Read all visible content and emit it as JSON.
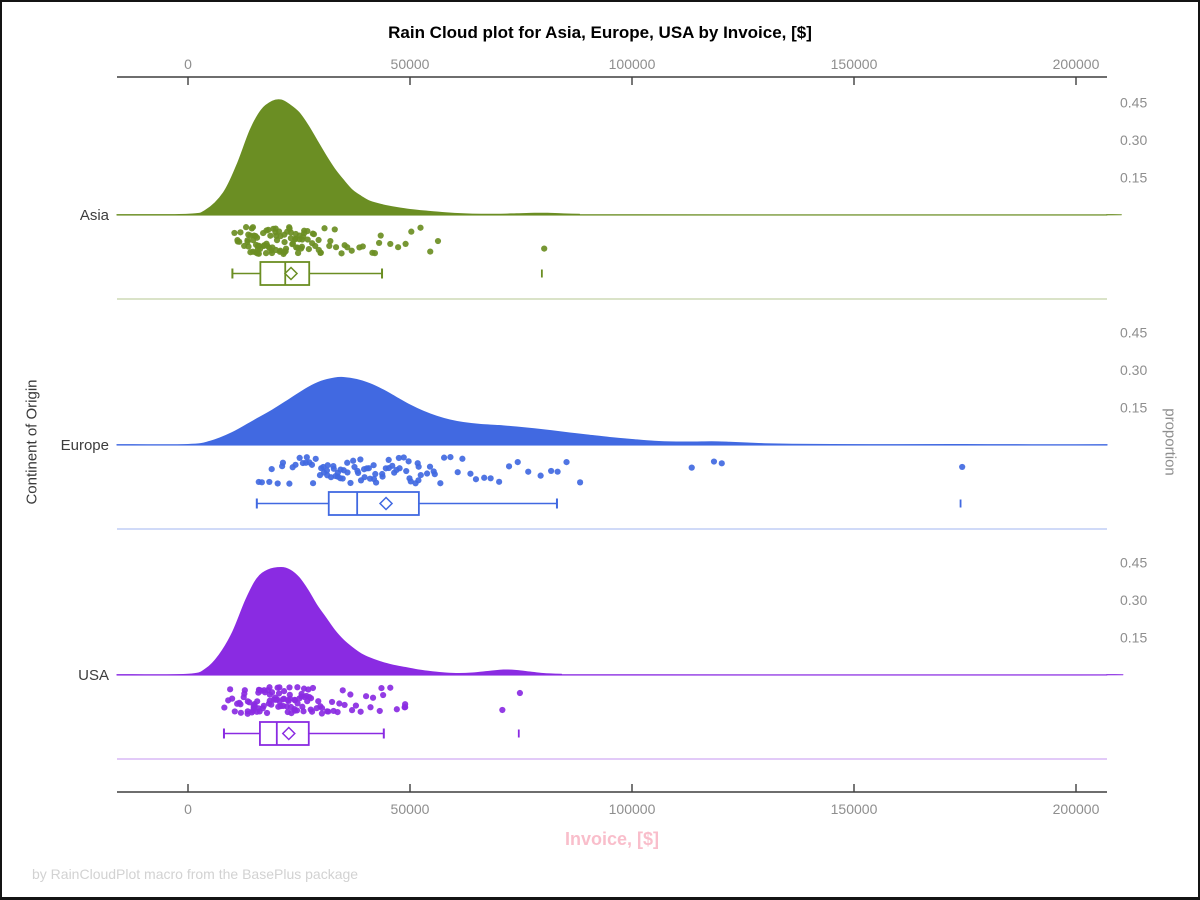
{
  "title": "Rain Cloud plot for Asia, Europe, USA by Invoice, [$]",
  "footer": "by RainCloudPlot macro from the BasePlus package",
  "x_axis": {
    "label": "Invoice, [$]",
    "ticks": [
      0,
      50000,
      100000,
      150000,
      200000
    ],
    "range": [
      -16000,
      207000
    ]
  },
  "y_axis_left": {
    "label": "Continent of Origin"
  },
  "y_axis_right": {
    "label": "proportion",
    "ticks": [
      0.15,
      0.3,
      0.45
    ]
  },
  "colors": {
    "asia": "#6B8E23",
    "europe": "#4169E1",
    "usa": "#8A2BE2",
    "axis_line": "#3f3f3f",
    "tick_label": "#8e8e8e",
    "category_label": "#3d3d3d",
    "xlabel_pink": "#F9BECB",
    "footer_gray": "#d2d2d2",
    "title_black": "#000000",
    "box_fill": "#ffffff"
  },
  "chart_data": {
    "type": "raincloud (half-violin density + jittered strip + box plot)",
    "x_unit": "Invoice, [$]",
    "proportion_ticks": [
      0.15,
      0.3,
      0.45
    ],
    "legend": "none",
    "grid": "off",
    "groups": [
      {
        "label": "Asia",
        "color": "#6B8E23",
        "density_peak": {
          "value": 20000,
          "proportion": 0.46
        },
        "box": {
          "whisker_low": 10000,
          "q1": 16300,
          "median": 21900,
          "mean": 23200,
          "q3": 27300,
          "whisker_high": 43700,
          "outliers": [
            79700
          ]
        },
        "density": [
          [
            0,
            0.003
          ],
          [
            4000,
            0.02
          ],
          [
            8000,
            0.09
          ],
          [
            11000,
            0.2
          ],
          [
            14000,
            0.34
          ],
          [
            16500,
            0.42
          ],
          [
            19000,
            0.455
          ],
          [
            21000,
            0.46
          ],
          [
            23000,
            0.44
          ],
          [
            25000,
            0.41
          ],
          [
            27000,
            0.36
          ],
          [
            29000,
            0.3
          ],
          [
            31000,
            0.24
          ],
          [
            33000,
            0.185
          ],
          [
            35000,
            0.14
          ],
          [
            37000,
            0.1
          ],
          [
            39000,
            0.075
          ],
          [
            41000,
            0.055
          ],
          [
            44000,
            0.04
          ],
          [
            47000,
            0.03
          ],
          [
            50000,
            0.022
          ],
          [
            54000,
            0.015
          ],
          [
            58000,
            0.009
          ],
          [
            62000,
            0.005
          ],
          [
            66000,
            0.003
          ],
          [
            70000,
            0.003
          ],
          [
            74000,
            0.005
          ],
          [
            78000,
            0.007
          ],
          [
            81000,
            0.007
          ],
          [
            84000,
            0.005
          ],
          [
            88000,
            0.003
          ],
          [
            95000,
            0.001
          ],
          [
            200000,
            0.0005
          ]
        ],
        "points": [
          10400,
          10900,
          11300,
          11700,
          12100,
          12400,
          12700,
          13000,
          13200,
          13500,
          13700,
          13900,
          14100,
          14300,
          14500,
          14700,
          14900,
          15000,
          15200,
          15400,
          15500,
          15700,
          15800,
          16000,
          16100,
          16200,
          16300,
          16500,
          16700,
          16900,
          17100,
          17300,
          17500,
          17700,
          17900,
          18100,
          18300,
          18500,
          18700,
          18900,
          19100,
          19300,
          19500,
          19700,
          19900,
          20100,
          20300,
          20500,
          20700,
          20900,
          21100,
          21300,
          21500,
          21700,
          21900,
          22100,
          22300,
          22500,
          22700,
          22900,
          23100,
          23300,
          23500,
          23800,
          24000,
          24200,
          24400,
          24600,
          24800,
          25000,
          25200,
          25400,
          25600,
          25800,
          26000,
          26200,
          26400,
          26600,
          26800,
          27000,
          27300,
          27600,
          27900,
          28200,
          28600,
          29000,
          29400,
          29800,
          30300,
          30800,
          31400,
          32000,
          32700,
          33500,
          34300,
          35200,
          36200,
          37300,
          38500,
          39800,
          41200,
          42500,
          43200,
          43800,
          45500,
          47000,
          48900,
          50500,
          52500,
          54300,
          56100,
          80200
        ]
      },
      {
        "label": "Europe",
        "color": "#4169E1",
        "density_peak": {
          "value": 35000,
          "proportion": 0.27
        },
        "box": {
          "whisker_low": 15500,
          "q1": 31700,
          "median": 38100,
          "mean": 44600,
          "q3": 52000,
          "whisker_high": 83100,
          "outliers": [
            174000
          ]
        },
        "density": [
          [
            0,
            0.002
          ],
          [
            5000,
            0.015
          ],
          [
            10000,
            0.05
          ],
          [
            15000,
            0.1
          ],
          [
            19000,
            0.14
          ],
          [
            23000,
            0.185
          ],
          [
            27000,
            0.23
          ],
          [
            30000,
            0.255
          ],
          [
            33000,
            0.268
          ],
          [
            35000,
            0.27
          ],
          [
            38000,
            0.262
          ],
          [
            41000,
            0.245
          ],
          [
            44000,
            0.22
          ],
          [
            47000,
            0.19
          ],
          [
            50000,
            0.16
          ],
          [
            53000,
            0.135
          ],
          [
            56000,
            0.115
          ],
          [
            59000,
            0.1
          ],
          [
            62000,
            0.09
          ],
          [
            66000,
            0.082
          ],
          [
            70000,
            0.078
          ],
          [
            74000,
            0.072
          ],
          [
            78000,
            0.065
          ],
          [
            82000,
            0.057
          ],
          [
            86000,
            0.048
          ],
          [
            90000,
            0.04
          ],
          [
            95000,
            0.03
          ],
          [
            100000,
            0.022
          ],
          [
            105000,
            0.015
          ],
          [
            110000,
            0.012
          ],
          [
            114000,
            0.012
          ],
          [
            118000,
            0.013
          ],
          [
            122000,
            0.011
          ],
          [
            126000,
            0.008
          ],
          [
            130000,
            0.005
          ],
          [
            136000,
            0.003
          ],
          [
            145000,
            0.002
          ],
          [
            160000,
            0.0015
          ],
          [
            172000,
            0.002
          ],
          [
            180000,
            0.0015
          ],
          [
            200000,
            0.001
          ]
        ],
        "points": [
          15500,
          16800,
          18000,
          19000,
          20000,
          21000,
          21800,
          22600,
          23400,
          24100,
          24800,
          25500,
          26100,
          26700,
          27300,
          27800,
          28300,
          28800,
          29300,
          29800,
          30200,
          30600,
          31000,
          31400,
          31700,
          32000,
          32300,
          32700,
          33100,
          33500,
          33900,
          34300,
          34700,
          35100,
          35500,
          35900,
          36300,
          36700,
          37100,
          37500,
          37900,
          38300,
          38700,
          39100,
          39500,
          39900,
          40300,
          40700,
          41100,
          41500,
          41900,
          42300,
          42800,
          43300,
          43800,
          44300,
          44800,
          45300,
          45800,
          46300,
          46800,
          47300,
          47800,
          48300,
          48800,
          49300,
          49800,
          50300,
          50800,
          51300,
          51800,
          52000,
          52600,
          53400,
          54200,
          55100,
          56000,
          57000,
          58100,
          59300,
          60600,
          62000,
          63500,
          65100,
          66800,
          68600,
          70500,
          72500,
          74600,
          76800,
          79100,
          81500,
          83100,
          84900,
          88500,
          113500,
          118200,
          119800,
          174100
        ]
      },
      {
        "label": "USA",
        "color": "#8A2BE2",
        "density_peak": {
          "value": 21000,
          "proportion": 0.43
        },
        "box": {
          "whisker_low": 8100,
          "q1": 16200,
          "median": 20000,
          "mean": 22700,
          "q3": 27200,
          "whisker_high": 44100,
          "outliers": [
            74500
          ]
        },
        "density": [
          [
            0,
            0.003
          ],
          [
            4000,
            0.025
          ],
          [
            7000,
            0.08
          ],
          [
            10000,
            0.17
          ],
          [
            13000,
            0.3
          ],
          [
            15500,
            0.385
          ],
          [
            18000,
            0.42
          ],
          [
            21000,
            0.43
          ],
          [
            23000,
            0.42
          ],
          [
            25000,
            0.39
          ],
          [
            27000,
            0.34
          ],
          [
            29000,
            0.28
          ],
          [
            31000,
            0.23
          ],
          [
            33000,
            0.18
          ],
          [
            35000,
            0.14
          ],
          [
            37000,
            0.11
          ],
          [
            39000,
            0.085
          ],
          [
            41000,
            0.068
          ],
          [
            43000,
            0.055
          ],
          [
            46000,
            0.04
          ],
          [
            49000,
            0.03
          ],
          [
            52000,
            0.02
          ],
          [
            55000,
            0.013
          ],
          [
            58000,
            0.008
          ],
          [
            61000,
            0.006
          ],
          [
            64000,
            0.008
          ],
          [
            68000,
            0.015
          ],
          [
            71000,
            0.02
          ],
          [
            74000,
            0.018
          ],
          [
            77000,
            0.012
          ],
          [
            80000,
            0.006
          ],
          [
            84000,
            0.003
          ],
          [
            90000,
            0.001
          ],
          [
            200000,
            0.0005
          ]
        ],
        "points": [
          8400,
          9000,
          9600,
          10100,
          10600,
          11000,
          11400,
          11800,
          12100,
          12400,
          12700,
          13000,
          13300,
          13600,
          13800,
          14000,
          14200,
          14400,
          14600,
          14800,
          15000,
          15200,
          15400,
          15500,
          15700,
          15800,
          15900,
          16100,
          16300,
          16500,
          16600,
          16800,
          17000,
          17200,
          17400,
          17600,
          17800,
          18000,
          18200,
          18400,
          18600,
          18800,
          19000,
          19200,
          19400,
          19600,
          19800,
          20000,
          20200,
          20400,
          20600,
          20800,
          21000,
          21200,
          21400,
          21600,
          21800,
          22000,
          22200,
          22400,
          22600,
          22800,
          23000,
          23200,
          23400,
          23600,
          23800,
          24000,
          24200,
          24400,
          24600,
          24800,
          25000,
          25200,
          25400,
          25600,
          25800,
          26000,
          26200,
          26400,
          26600,
          26800,
          27000,
          27200,
          27500,
          27800,
          28100,
          28500,
          28900,
          29300,
          29700,
          30100,
          30600,
          31100,
          31600,
          32200,
          32800,
          33400,
          34100,
          34800,
          35500,
          36300,
          37100,
          38000,
          38900,
          39900,
          40900,
          42000,
          43000,
          43700,
          44100,
          45500,
          46800,
          48500,
          48900,
          49300,
          70700,
          74700
        ]
      }
    ]
  }
}
